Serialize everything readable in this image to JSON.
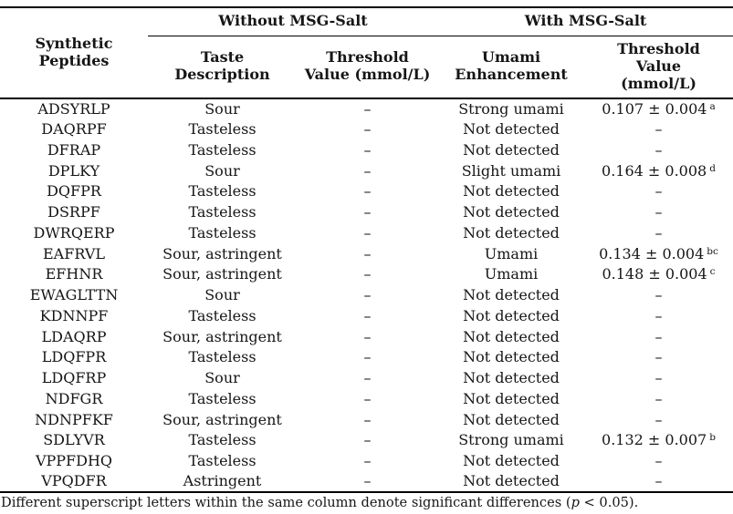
{
  "table": {
    "peptides_header": "Synthetic\nPeptides",
    "groups": [
      {
        "label": "Without MSG-Salt"
      },
      {
        "label": "With MSG-Salt"
      }
    ],
    "columns": [
      {
        "label": "Taste\nDescription"
      },
      {
        "label": "Threshold\nValue (mmol/L)"
      },
      {
        "label": "Umami\nEnhancement"
      },
      {
        "label": "Threshold\nValue\n(mmol/L)"
      }
    ],
    "rows": [
      {
        "peptide": "ADSYRLP",
        "taste": "Sour",
        "threshold_without": "–",
        "umami": "Strong umami",
        "threshold_with": "0.107 ± 0.004",
        "threshold_with_sup": "a"
      },
      {
        "peptide": "DAQRPF",
        "taste": "Tasteless",
        "threshold_without": "–",
        "umami": "Not detected",
        "threshold_with": "–",
        "threshold_with_sup": ""
      },
      {
        "peptide": "DFRAP",
        "taste": "Tasteless",
        "threshold_without": "–",
        "umami": "Not detected",
        "threshold_with": "–",
        "threshold_with_sup": ""
      },
      {
        "peptide": "DPLKY",
        "taste": "Sour",
        "threshold_without": "–",
        "umami": "Slight umami",
        "threshold_with": "0.164 ± 0.008",
        "threshold_with_sup": "d"
      },
      {
        "peptide": "DQFPR",
        "taste": "Tasteless",
        "threshold_without": "–",
        "umami": "Not detected",
        "threshold_with": "–",
        "threshold_with_sup": ""
      },
      {
        "peptide": "DSRPF",
        "taste": "Tasteless",
        "threshold_without": "–",
        "umami": "Not detected",
        "threshold_with": "–",
        "threshold_with_sup": ""
      },
      {
        "peptide": "DWRQERP",
        "taste": "Tasteless",
        "threshold_without": "–",
        "umami": "Not detected",
        "threshold_with": "–",
        "threshold_with_sup": ""
      },
      {
        "peptide": "EAFRVL",
        "taste": "Sour, astringent",
        "threshold_without": "–",
        "umami": "Umami",
        "threshold_with": "0.134 ± 0.004",
        "threshold_with_sup": "bc"
      },
      {
        "peptide": "EFHNR",
        "taste": "Sour, astringent",
        "threshold_without": "–",
        "umami": "Umami",
        "threshold_with": "0.148 ± 0.004",
        "threshold_with_sup": "c"
      },
      {
        "peptide": "EWAGLTTN",
        "taste": "Sour",
        "threshold_without": "–",
        "umami": "Not detected",
        "threshold_with": "–",
        "threshold_with_sup": ""
      },
      {
        "peptide": "KDNNPF",
        "taste": "Tasteless",
        "threshold_without": "–",
        "umami": "Not detected",
        "threshold_with": "–",
        "threshold_with_sup": ""
      },
      {
        "peptide": "LDAQRP",
        "taste": "Sour, astringent",
        "threshold_without": "–",
        "umami": "Not detected",
        "threshold_with": "–",
        "threshold_with_sup": ""
      },
      {
        "peptide": "LDQFPR",
        "taste": "Tasteless",
        "threshold_without": "–",
        "umami": "Not detected",
        "threshold_with": "–",
        "threshold_with_sup": ""
      },
      {
        "peptide": "LDQFRP",
        "taste": "Sour",
        "threshold_without": "–",
        "umami": "Not detected",
        "threshold_with": "–",
        "threshold_with_sup": ""
      },
      {
        "peptide": "NDFGR",
        "taste": "Tasteless",
        "threshold_without": "–",
        "umami": "Not detected",
        "threshold_with": "–",
        "threshold_with_sup": ""
      },
      {
        "peptide": "NDNPFKF",
        "taste": "Sour, astringent",
        "threshold_without": "–",
        "umami": "Not detected",
        "threshold_with": "–",
        "threshold_with_sup": ""
      },
      {
        "peptide": "SDLYVR",
        "taste": "Tasteless",
        "threshold_without": "–",
        "umami": "Strong umami",
        "threshold_with": "0.132 ± 0.007",
        "threshold_with_sup": "b"
      },
      {
        "peptide": "VPPFDHQ",
        "taste": "Tasteless",
        "threshold_without": "–",
        "umami": "Not detected",
        "threshold_with": "–",
        "threshold_with_sup": ""
      },
      {
        "peptide": "VPQDFR",
        "taste": "Astringent",
        "threshold_without": "–",
        "umami": "Not detected",
        "threshold_with": "–",
        "threshold_with_sup": ""
      }
    ],
    "footnote": {
      "pre": "Different superscript letters within the same column denote significant differences (",
      "italic_var": "p",
      "post": " < 0.05)."
    }
  }
}
